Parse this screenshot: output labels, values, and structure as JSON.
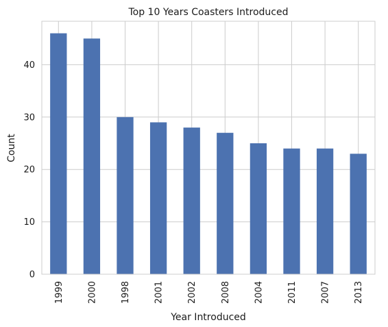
{
  "chart_data": {
    "type": "bar",
    "title": "Top 10 Years Coasters Introduced",
    "xlabel": "Year Introduced",
    "ylabel": "Count",
    "categories": [
      "1999",
      "2000",
      "1998",
      "2001",
      "2002",
      "2008",
      "2004",
      "2011",
      "2007",
      "2013"
    ],
    "values": [
      46,
      45,
      30,
      29,
      28,
      27,
      25,
      24,
      24,
      23
    ],
    "ylim": [
      0,
      48.3
    ],
    "yticks": [
      0,
      10,
      20,
      30,
      40
    ],
    "grid": true,
    "bar_color": "#4c72b0",
    "grid_color": "#cccccc",
    "spine_color": "#cccccc"
  }
}
